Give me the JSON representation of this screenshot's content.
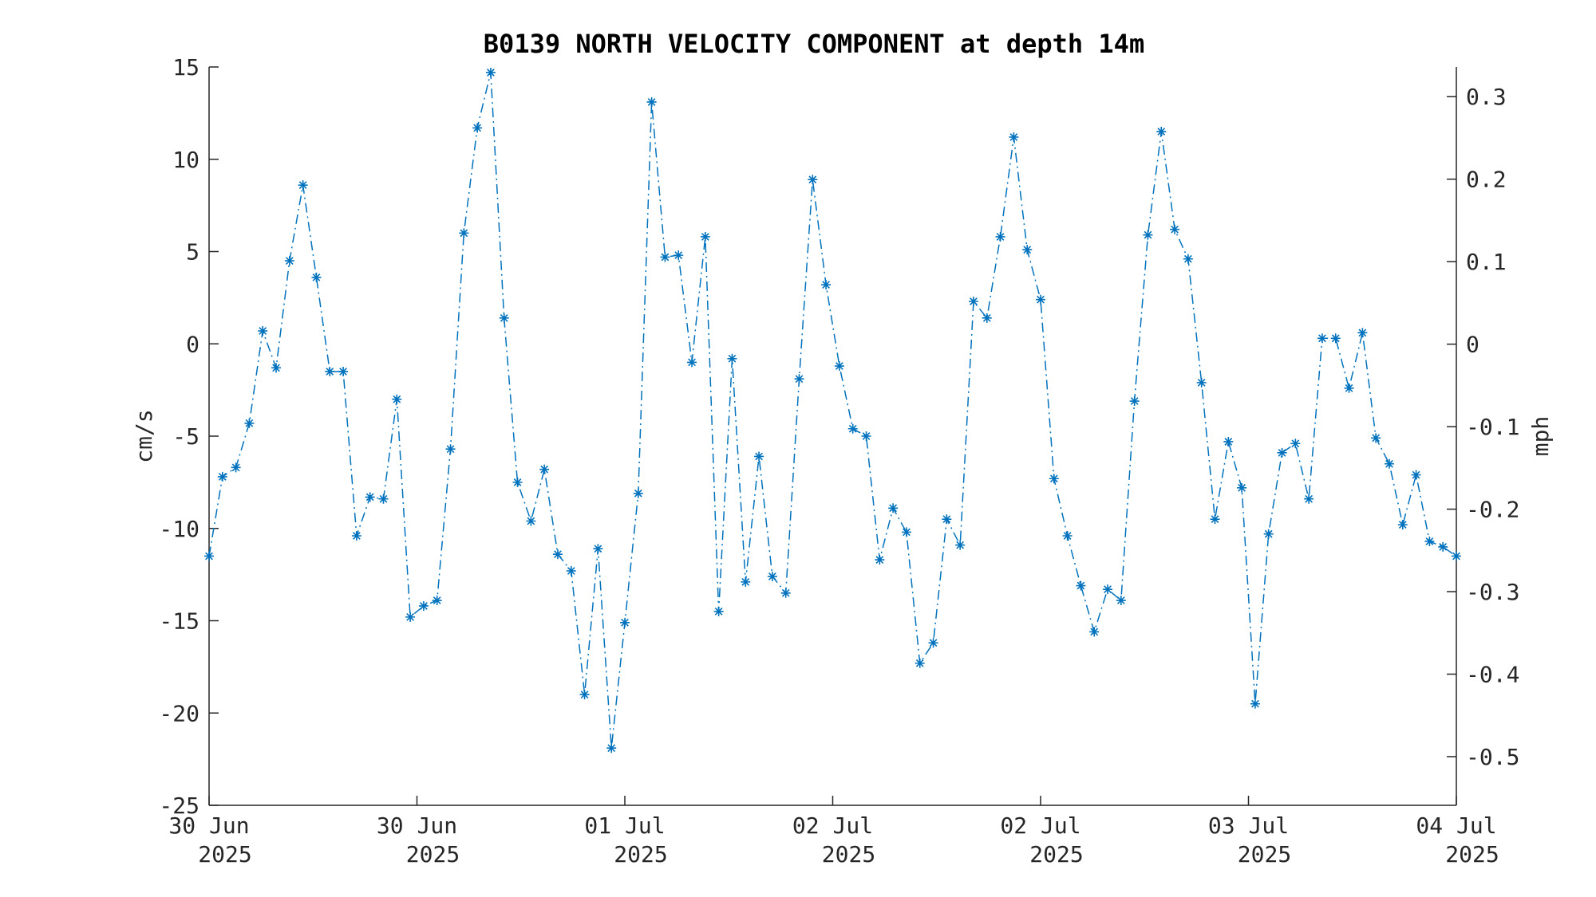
{
  "chart_data": {
    "type": "line",
    "title": "B0139 NORTH VELOCITY COMPONENT at depth 14m",
    "ylabel": "cm/s",
    "y2label": "mph",
    "ylim": [
      -25,
      15
    ],
    "y2lim": [
      -0.559,
      0.336
    ],
    "yticks": [
      15,
      10,
      5,
      0,
      -5,
      -10,
      -15,
      -20,
      -25
    ],
    "y2ticks": [
      0.3,
      0.2,
      0.1,
      0,
      -0.1,
      -0.2,
      -0.3,
      -0.4,
      -0.5
    ],
    "y2tick_labels": [
      "0.3",
      "0.2",
      "0.1",
      "0",
      "-0.1",
      "-0.2",
      "-0.3",
      "-0.4",
      "-0.5"
    ],
    "xtick_labels": [
      {
        "day": "30 Jun",
        "year": "2025"
      },
      {
        "day": "30 Jun",
        "year": "2025"
      },
      {
        "day": "01 Jul",
        "year": "2025"
      },
      {
        "day": "02 Jul",
        "year": "2025"
      },
      {
        "day": "02 Jul",
        "year": "2025"
      },
      {
        "day": "03 Jul",
        "year": "2025"
      },
      {
        "day": "04 Jul",
        "year": "2025"
      }
    ],
    "marker": "asterisk",
    "line_style": "dash-dot",
    "grid": false,
    "series_color": "#0072BD",
    "series": [
      {
        "values": [
          -11.5,
          -7.2,
          -6.7,
          -4.3,
          0.7,
          -1.3,
          4.5,
          8.6,
          3.6,
          -1.5,
          -1.5,
          -10.4,
          -8.3,
          -8.4,
          -3.0,
          -14.8,
          -14.2,
          -13.9,
          -5.7,
          6.0,
          11.7,
          14.7,
          1.4,
          -7.5,
          -9.6,
          -6.8,
          -11.4,
          -12.3,
          -19.0,
          -11.1,
          -21.9,
          -15.1,
          -8.1,
          13.1,
          4.7,
          4.8,
          -1.0,
          5.8,
          -14.5,
          -0.8,
          -12.9,
          -6.1,
          -12.6,
          -13.5,
          -1.9,
          8.9,
          3.2,
          -1.2,
          -4.6,
          -5.0,
          -11.7,
          -8.9,
          -10.2,
          -17.3,
          -16.2,
          -9.5,
          -10.9,
          2.3,
          1.4,
          5.8,
          11.2,
          5.1,
          2.4,
          -7.3,
          -10.4,
          -13.1,
          -15.6,
          -13.3,
          -13.9,
          -3.1,
          5.9,
          11.5,
          6.2,
          4.6,
          -2.1,
          -9.5,
          -5.3,
          -7.8,
          -19.5,
          -10.3,
          -5.9,
          -5.4,
          -8.4,
          0.3,
          0.3,
          -2.4,
          0.6,
          -5.1,
          -6.5,
          -9.8,
          -7.1,
          -10.7,
          -11.0,
          -11.5
        ]
      }
    ]
  }
}
